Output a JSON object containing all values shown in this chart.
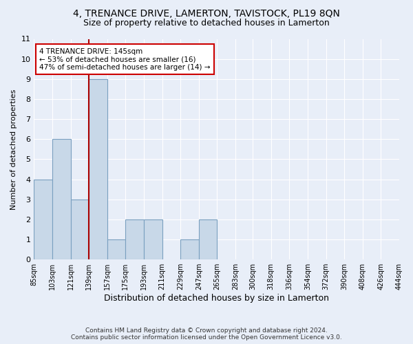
{
  "title": "4, TRENANCE DRIVE, LAMERTON, TAVISTOCK, PL19 8QN",
  "subtitle": "Size of property relative to detached houses in Lamerton",
  "xlabel": "Distribution of detached houses by size in Lamerton",
  "ylabel": "Number of detached properties",
  "footer_line1": "Contains HM Land Registry data © Crown copyright and database right 2024.",
  "footer_line2": "Contains public sector information licensed under the Open Government Licence v3.0.",
  "bins": [
    85,
    103,
    121,
    139,
    157,
    175,
    193,
    211,
    229,
    247,
    265,
    283,
    300,
    318,
    336,
    354,
    372,
    390,
    408,
    426,
    444
  ],
  "bin_labels": [
    "85sqm",
    "103sqm",
    "121sqm",
    "139sqm",
    "157sqm",
    "175sqm",
    "193sqm",
    "211sqm",
    "229sqm",
    "247sqm",
    "265sqm",
    "283sqm",
    "300sqm",
    "318sqm",
    "336sqm",
    "354sqm",
    "372sqm",
    "390sqm",
    "408sqm",
    "426sqm",
    "444sqm"
  ],
  "counts": [
    4,
    6,
    3,
    9,
    1,
    2,
    2,
    0,
    1,
    2,
    0,
    0,
    0,
    0,
    0,
    0,
    0,
    0,
    0,
    0
  ],
  "bar_color": "#c8d8e8",
  "bar_edgecolor": "#7aa0c0",
  "property_value": 145,
  "property_bin_index": 3,
  "annotation_title": "4 TRENANCE DRIVE: 145sqm",
  "annotation_line1": "← 53% of detached houses are smaller (16)",
  "annotation_line2": "47% of semi-detached houses are larger (14) →",
  "annotation_box_color": "#ffffff",
  "annotation_box_edgecolor": "#cc0000",
  "red_line_color": "#aa0000",
  "ylim": [
    0,
    11
  ],
  "yticks": [
    0,
    1,
    2,
    3,
    4,
    5,
    6,
    7,
    8,
    9,
    10,
    11
  ],
  "background_color": "#e8eef8",
  "plot_background": "#e8eef8",
  "grid_color": "#ffffff",
  "title_fontsize": 10,
  "subtitle_fontsize": 9,
  "xlabel_fontsize": 9,
  "ylabel_fontsize": 8,
  "footer_fontsize": 6.5
}
